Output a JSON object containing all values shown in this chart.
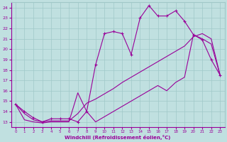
{
  "xlabel": "Windchill (Refroidissement éolien,°C)",
  "background_color": "#c0e0e0",
  "line_color": "#990099",
  "grid_color": "#a0c8c8",
  "ylim": [
    12.5,
    24.5
  ],
  "xlim": [
    -0.5,
    23.5
  ],
  "yticks": [
    13,
    14,
    15,
    16,
    17,
    18,
    19,
    20,
    21,
    22,
    23,
    24
  ],
  "xticks": [
    0,
    1,
    2,
    3,
    4,
    5,
    6,
    7,
    8,
    9,
    10,
    11,
    12,
    13,
    14,
    15,
    16,
    17,
    18,
    19,
    20,
    21,
    22,
    23
  ],
  "line1_x": [
    0,
    1,
    2,
    3,
    4,
    5,
    6,
    7,
    8,
    9,
    10,
    11,
    12,
    13,
    14,
    15,
    16,
    17,
    18,
    19,
    20,
    21,
    22,
    23
  ],
  "line1_y": [
    14.7,
    14.0,
    13.4,
    13.0,
    13.3,
    13.3,
    13.3,
    13.0,
    14.0,
    18.5,
    21.5,
    21.7,
    21.5,
    19.5,
    23.0,
    24.2,
    23.2,
    23.2,
    23.7,
    22.7,
    21.4,
    20.9,
    19.0,
    17.5
  ],
  "line2_x": [
    0,
    1,
    2,
    3,
    4,
    5,
    6,
    7,
    8,
    9,
    10,
    11,
    12,
    13,
    14,
    15,
    16,
    17,
    18,
    19,
    20,
    21,
    22,
    23
  ],
  "line2_y": [
    14.7,
    13.8,
    13.2,
    13.0,
    13.1,
    13.1,
    13.1,
    13.8,
    14.8,
    15.2,
    15.7,
    16.2,
    16.8,
    17.3,
    17.8,
    18.3,
    18.8,
    19.3,
    19.8,
    20.3,
    21.2,
    21.5,
    21.0,
    17.5
  ],
  "line3_x": [
    0,
    1,
    2,
    3,
    4,
    5,
    6,
    7,
    8,
    9,
    10,
    11,
    12,
    13,
    14,
    15,
    16,
    17,
    18,
    19,
    20,
    21,
    22,
    23
  ],
  "line3_y": [
    14.7,
    13.2,
    13.0,
    12.9,
    13.0,
    13.0,
    13.0,
    15.8,
    14.0,
    13.0,
    13.5,
    14.0,
    14.5,
    15.0,
    15.5,
    16.0,
    16.5,
    16.0,
    16.8,
    17.3,
    21.4,
    21.0,
    20.5,
    17.5
  ]
}
